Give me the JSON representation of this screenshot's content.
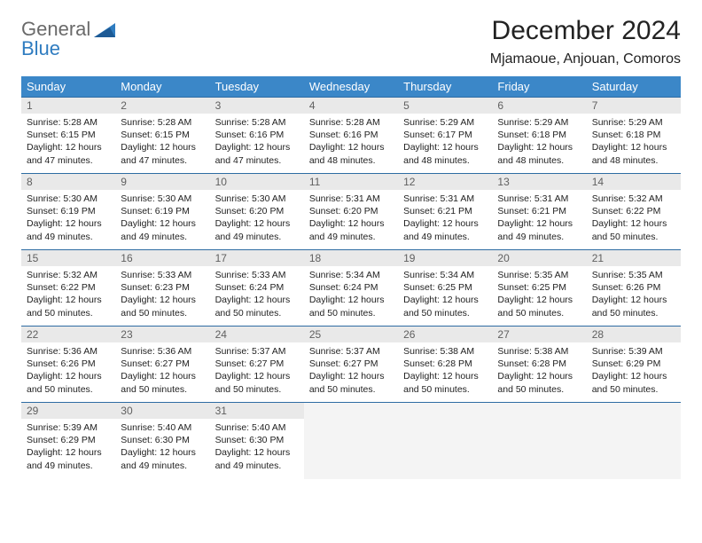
{
  "logo": {
    "line1": "General",
    "line2": "Blue",
    "blue": "#2f7cc0",
    "gray": "#6a6a6a"
  },
  "title": "December 2024",
  "location": "Mjamaoue, Anjouan, Comoros",
  "colors": {
    "header_bg": "#3b87c8",
    "header_text": "#ffffff",
    "daynum_bg": "#e9e9e9",
    "daynum_text": "#606060",
    "row_border": "#2e6ca3",
    "empty_bg": "#f4f4f4",
    "body_text": "#222222"
  },
  "day_headers": [
    "Sunday",
    "Monday",
    "Tuesday",
    "Wednesday",
    "Thursday",
    "Friday",
    "Saturday"
  ],
  "weeks": [
    [
      {
        "n": "1",
        "sr": "5:28 AM",
        "ss": "6:15 PM",
        "dl": "12 hours and 47 minutes."
      },
      {
        "n": "2",
        "sr": "5:28 AM",
        "ss": "6:15 PM",
        "dl": "12 hours and 47 minutes."
      },
      {
        "n": "3",
        "sr": "5:28 AM",
        "ss": "6:16 PM",
        "dl": "12 hours and 47 minutes."
      },
      {
        "n": "4",
        "sr": "5:28 AM",
        "ss": "6:16 PM",
        "dl": "12 hours and 48 minutes."
      },
      {
        "n": "5",
        "sr": "5:29 AM",
        "ss": "6:17 PM",
        "dl": "12 hours and 48 minutes."
      },
      {
        "n": "6",
        "sr": "5:29 AM",
        "ss": "6:18 PM",
        "dl": "12 hours and 48 minutes."
      },
      {
        "n": "7",
        "sr": "5:29 AM",
        "ss": "6:18 PM",
        "dl": "12 hours and 48 minutes."
      }
    ],
    [
      {
        "n": "8",
        "sr": "5:30 AM",
        "ss": "6:19 PM",
        "dl": "12 hours and 49 minutes."
      },
      {
        "n": "9",
        "sr": "5:30 AM",
        "ss": "6:19 PM",
        "dl": "12 hours and 49 minutes."
      },
      {
        "n": "10",
        "sr": "5:30 AM",
        "ss": "6:20 PM",
        "dl": "12 hours and 49 minutes."
      },
      {
        "n": "11",
        "sr": "5:31 AM",
        "ss": "6:20 PM",
        "dl": "12 hours and 49 minutes."
      },
      {
        "n": "12",
        "sr": "5:31 AM",
        "ss": "6:21 PM",
        "dl": "12 hours and 49 minutes."
      },
      {
        "n": "13",
        "sr": "5:31 AM",
        "ss": "6:21 PM",
        "dl": "12 hours and 49 minutes."
      },
      {
        "n": "14",
        "sr": "5:32 AM",
        "ss": "6:22 PM",
        "dl": "12 hours and 50 minutes."
      }
    ],
    [
      {
        "n": "15",
        "sr": "5:32 AM",
        "ss": "6:22 PM",
        "dl": "12 hours and 50 minutes."
      },
      {
        "n": "16",
        "sr": "5:33 AM",
        "ss": "6:23 PM",
        "dl": "12 hours and 50 minutes."
      },
      {
        "n": "17",
        "sr": "5:33 AM",
        "ss": "6:24 PM",
        "dl": "12 hours and 50 minutes."
      },
      {
        "n": "18",
        "sr": "5:34 AM",
        "ss": "6:24 PM",
        "dl": "12 hours and 50 minutes."
      },
      {
        "n": "19",
        "sr": "5:34 AM",
        "ss": "6:25 PM",
        "dl": "12 hours and 50 minutes."
      },
      {
        "n": "20",
        "sr": "5:35 AM",
        "ss": "6:25 PM",
        "dl": "12 hours and 50 minutes."
      },
      {
        "n": "21",
        "sr": "5:35 AM",
        "ss": "6:26 PM",
        "dl": "12 hours and 50 minutes."
      }
    ],
    [
      {
        "n": "22",
        "sr": "5:36 AM",
        "ss": "6:26 PM",
        "dl": "12 hours and 50 minutes."
      },
      {
        "n": "23",
        "sr": "5:36 AM",
        "ss": "6:27 PM",
        "dl": "12 hours and 50 minutes."
      },
      {
        "n": "24",
        "sr": "5:37 AM",
        "ss": "6:27 PM",
        "dl": "12 hours and 50 minutes."
      },
      {
        "n": "25",
        "sr": "5:37 AM",
        "ss": "6:27 PM",
        "dl": "12 hours and 50 minutes."
      },
      {
        "n": "26",
        "sr": "5:38 AM",
        "ss": "6:28 PM",
        "dl": "12 hours and 50 minutes."
      },
      {
        "n": "27",
        "sr": "5:38 AM",
        "ss": "6:28 PM",
        "dl": "12 hours and 50 minutes."
      },
      {
        "n": "28",
        "sr": "5:39 AM",
        "ss": "6:29 PM",
        "dl": "12 hours and 50 minutes."
      }
    ],
    [
      {
        "n": "29",
        "sr": "5:39 AM",
        "ss": "6:29 PM",
        "dl": "12 hours and 49 minutes."
      },
      {
        "n": "30",
        "sr": "5:40 AM",
        "ss": "6:30 PM",
        "dl": "12 hours and 49 minutes."
      },
      {
        "n": "31",
        "sr": "5:40 AM",
        "ss": "6:30 PM",
        "dl": "12 hours and 49 minutes."
      },
      null,
      null,
      null,
      null
    ]
  ],
  "labels": {
    "sunrise": "Sunrise: ",
    "sunset": "Sunset: ",
    "daylight": "Daylight: "
  }
}
